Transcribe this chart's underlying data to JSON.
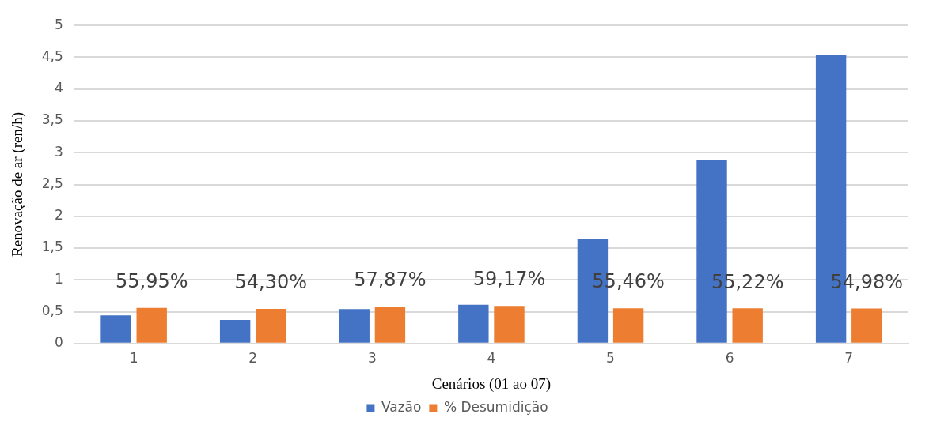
{
  "chart_data": {
    "type": "bar",
    "xlabel": "Cenários (01 ao 07)",
    "ylabel": "Renovação de ar (ren/h)",
    "categories": [
      "1",
      "2",
      "3",
      "4",
      "5",
      "6",
      "7"
    ],
    "series": [
      {
        "name": "Vazão",
        "color": "#4472c4",
        "values": [
          0.44,
          0.37,
          0.54,
          0.61,
          1.64,
          2.88,
          4.53
        ]
      },
      {
        "name": "% Desumidição",
        "color": "#ed7d31",
        "values": [
          0.5595,
          0.543,
          0.5787,
          0.5917,
          0.5546,
          0.5522,
          0.5498
        ],
        "value_labels": [
          "55,95%",
          "54,30%",
          "57,87%",
          "59,17%",
          "55,46%",
          "55,22%",
          "54,98%"
        ]
      }
    ],
    "ylim": [
      0,
      5
    ],
    "yticks": [
      0,
      {
        "value": 0.5,
        "label": "0,5"
      },
      1,
      {
        "value": 1.5,
        "label": "1,5"
      },
      2,
      {
        "value": 2.5,
        "label": "2,5"
      },
      3,
      {
        "value": 3.5,
        "label": "3,5"
      },
      4,
      {
        "value": 4.5,
        "label": "4,5"
      },
      5
    ],
    "grid": "y",
    "legend": "bottom"
  }
}
